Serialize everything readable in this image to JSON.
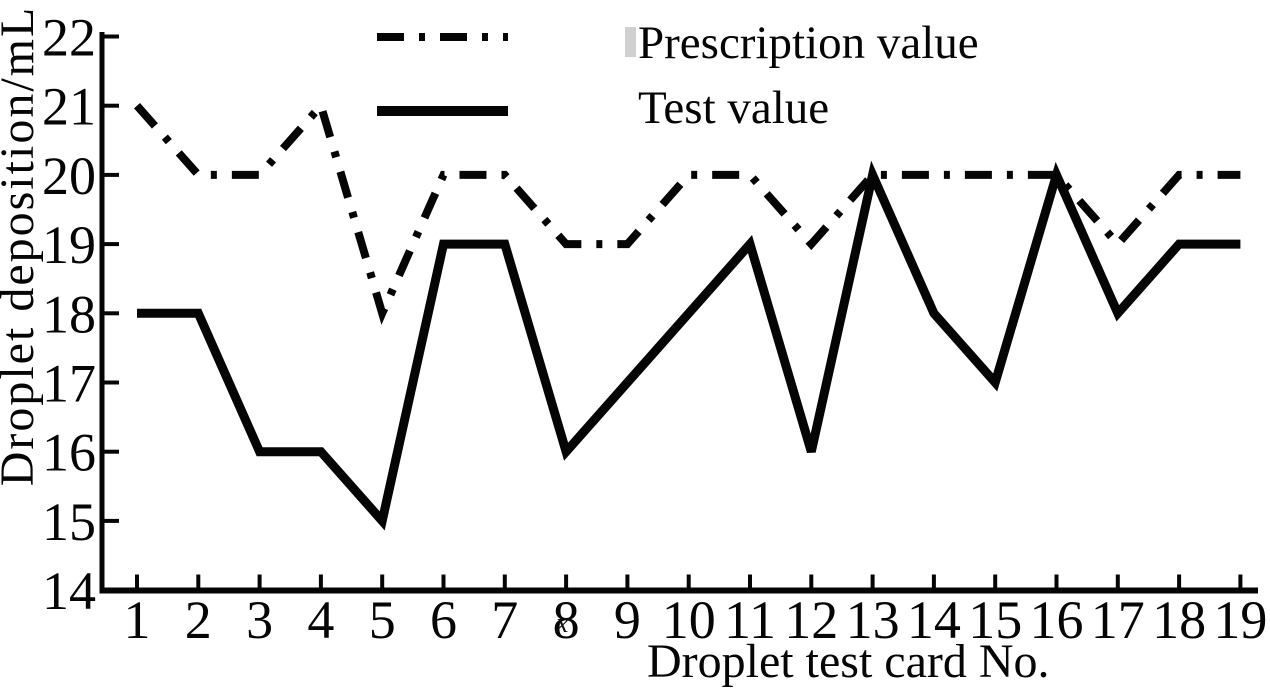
{
  "chart_data": {
    "type": "line",
    "xlabel": "Droplet test card No.",
    "ylabel": "Droplet deposition/mL",
    "x": [
      1,
      2,
      3,
      4,
      5,
      6,
      7,
      8,
      9,
      10,
      11,
      12,
      13,
      14,
      15,
      16,
      17,
      18,
      19
    ],
    "xticks": [
      1,
      2,
      3,
      4,
      5,
      6,
      7,
      8,
      9,
      10,
      11,
      12,
      13,
      14,
      15,
      16,
      17,
      18,
      19
    ],
    "yticks": [
      14,
      15,
      16,
      17,
      18,
      19,
      20,
      21,
      22
    ],
    "xlim": [
      1,
      19
    ],
    "ylim": [
      14,
      22
    ],
    "grid": false,
    "legend_position": "top-center-inside",
    "ink_color": "#050505",
    "series": [
      {
        "name": "Prescription value",
        "style": "dashdot",
        "color": "#050505",
        "values": [
          21,
          20,
          20,
          21,
          18,
          20,
          20,
          19,
          19,
          20,
          20,
          19,
          20,
          20,
          20,
          20,
          19,
          20,
          20
        ]
      },
      {
        "name": "Test value",
        "style": "solid",
        "color": "#050505",
        "values": [
          18,
          18,
          16,
          16,
          15,
          19,
          19,
          16,
          17,
          18,
          19,
          16,
          20,
          18,
          17,
          20,
          18,
          19,
          19
        ]
      }
    ]
  },
  "artifacts": {
    "below_tick8": "x"
  }
}
